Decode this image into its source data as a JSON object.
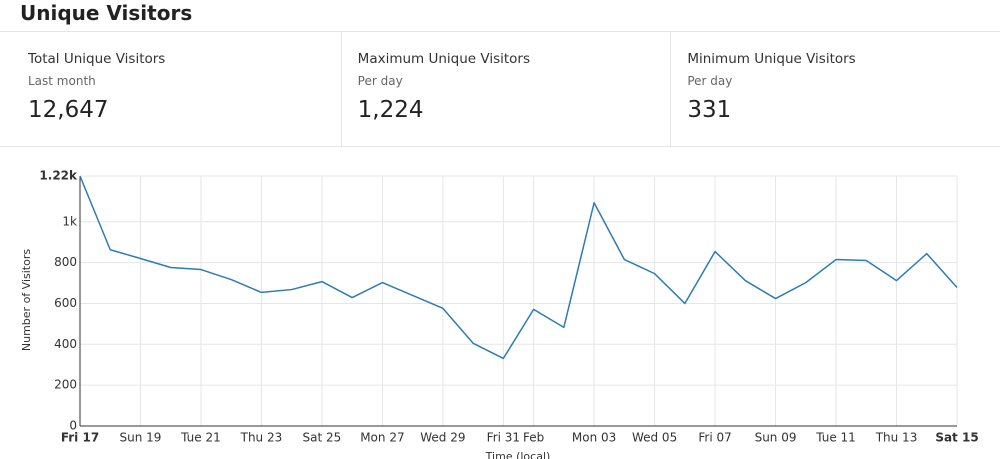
{
  "header": {
    "title": "Unique Visitors"
  },
  "stats": [
    {
      "label": "Total Unique Visitors",
      "sublabel": "Last month",
      "value": "12,647"
    },
    {
      "label": "Maximum Unique Visitors",
      "sublabel": "Per day",
      "value": "1,224"
    },
    {
      "label": "Minimum Unique Visitors",
      "sublabel": "Per day",
      "value": "331"
    }
  ],
  "chart_data": {
    "type": "line",
    "xlabel": "Time (local)",
    "ylabel": "Number of Visitors",
    "categories": [
      "Fri 17",
      null,
      "Sun 19",
      null,
      "Tue 21",
      null,
      "Thu 23",
      null,
      "Sat 25",
      null,
      "Mon 27",
      null,
      "Wed 29",
      null,
      "Fri 31",
      "Feb",
      null,
      "Mon 03",
      null,
      "Wed 05",
      null,
      "Fri 07",
      null,
      "Sun 09",
      null,
      "Tue 11",
      null,
      "Thu 13",
      null,
      "Sat 15"
    ],
    "series": [
      {
        "name": "Unique Visitors",
        "color": "#2e7bb4",
        "values": [
          1224,
          863,
          820,
          776,
          766,
          717,
          654,
          668,
          707,
          629,
          702,
          639,
          576,
          405,
          331,
          571,
          483,
          1093,
          815,
          746,
          600,
          854,
          712,
          624,
          702,
          815,
          810,
          712,
          844,
          678
        ]
      }
    ],
    "ylim": [
      0,
      1224
    ],
    "yticks": [
      0,
      200,
      400,
      600,
      800,
      {
        "value": 1000,
        "label": "1k"
      },
      {
        "value": 1224,
        "label": "1.22k"
      }
    ],
    "grid": true
  }
}
